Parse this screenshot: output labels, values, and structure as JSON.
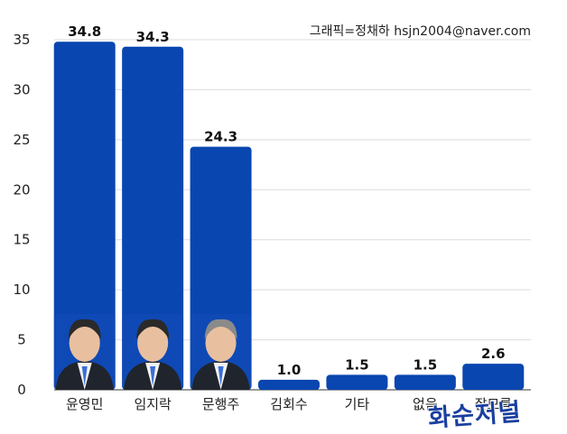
{
  "credit": "그래픽=정채하 hsjn2004@naver.com",
  "watermark": "화순저널",
  "colors": {
    "bar": "#0a46b0",
    "grid": "#dcdcdc",
    "axis": "#333333"
  },
  "chart_data": {
    "type": "bar",
    "title": "",
    "xlabel": "",
    "ylabel": "",
    "categories": [
      "윤영민",
      "임지락",
      "문행주",
      "김회수",
      "기타",
      "없음",
      "잘모름"
    ],
    "values": [
      34.8,
      34.3,
      24.3,
      1.0,
      1.5,
      1.5,
      2.6
    ],
    "value_labels": [
      "34.8",
      "34.3",
      "24.3",
      "1.0",
      "1.5",
      "1.5",
      "2.6"
    ],
    "ylim": [
      0,
      35
    ],
    "yticks": [
      "0",
      "5",
      "10",
      "15",
      "20",
      "25",
      "30",
      "35"
    ],
    "grid": true,
    "legend": "none",
    "portraits_on_bars": [
      "윤영민",
      "임지락",
      "문행주"
    ]
  }
}
